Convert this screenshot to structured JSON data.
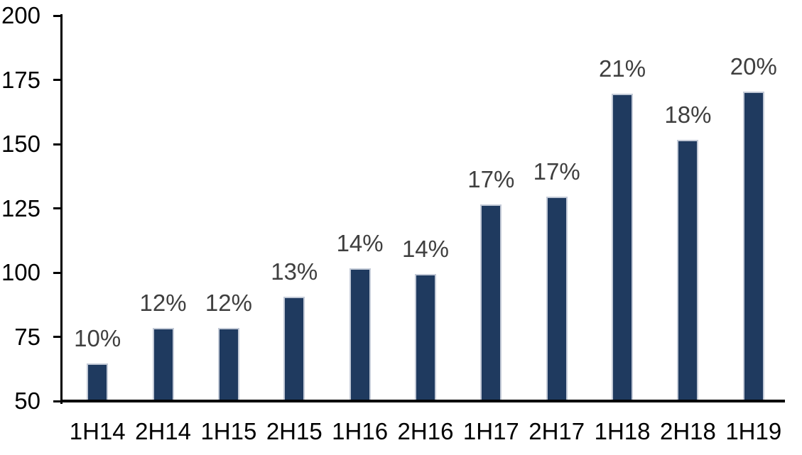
{
  "chart_data": {
    "type": "bar",
    "title": "",
    "xlabel": "",
    "ylabel": "",
    "categories": [
      "1H14",
      "2H14",
      "1H15",
      "2H15",
      "1H16",
      "2H16",
      "1H17",
      "2H17",
      "1H18",
      "2H18",
      "1H19"
    ],
    "values": [
      64,
      78,
      78,
      90,
      101,
      99,
      126,
      129,
      169,
      151,
      170
    ],
    "data_labels": [
      "10%",
      "12%",
      "12%",
      "13%",
      "14%",
      "14%",
      "17%",
      "17%",
      "21%",
      "18%",
      "20%"
    ],
    "ylim": [
      50,
      200
    ],
    "yticks": [
      50,
      75,
      100,
      125,
      150,
      175,
      200
    ],
    "grid": false,
    "legend": false,
    "colors": {
      "bar_fill": "#1f3a5f",
      "bar_border": "#c3cad7",
      "data_label_text": "#3f3f3f",
      "axis_text": "#000000",
      "axis_line": "#000000"
    }
  }
}
